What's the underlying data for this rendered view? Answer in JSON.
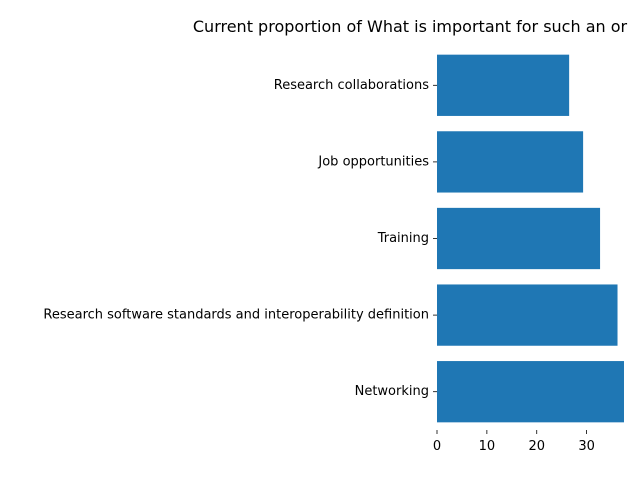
{
  "chart_data": {
    "type": "bar",
    "orientation": "horizontal",
    "title": "Current proportion of What is important for such an or",
    "xlabel": "",
    "ylabel": "",
    "categories": [
      "Networking",
      "Research software standards and interoperability definition",
      "Training",
      "Job opportunities",
      "Research collaborations"
    ],
    "values": [
      37.5,
      36.2,
      32.7,
      29.3,
      26.5
    ],
    "xlim": [
      0,
      37.5
    ],
    "xticks": [
      "0",
      "10",
      "20",
      "30"
    ],
    "grid": false,
    "bar_color": "#1f77b4"
  }
}
